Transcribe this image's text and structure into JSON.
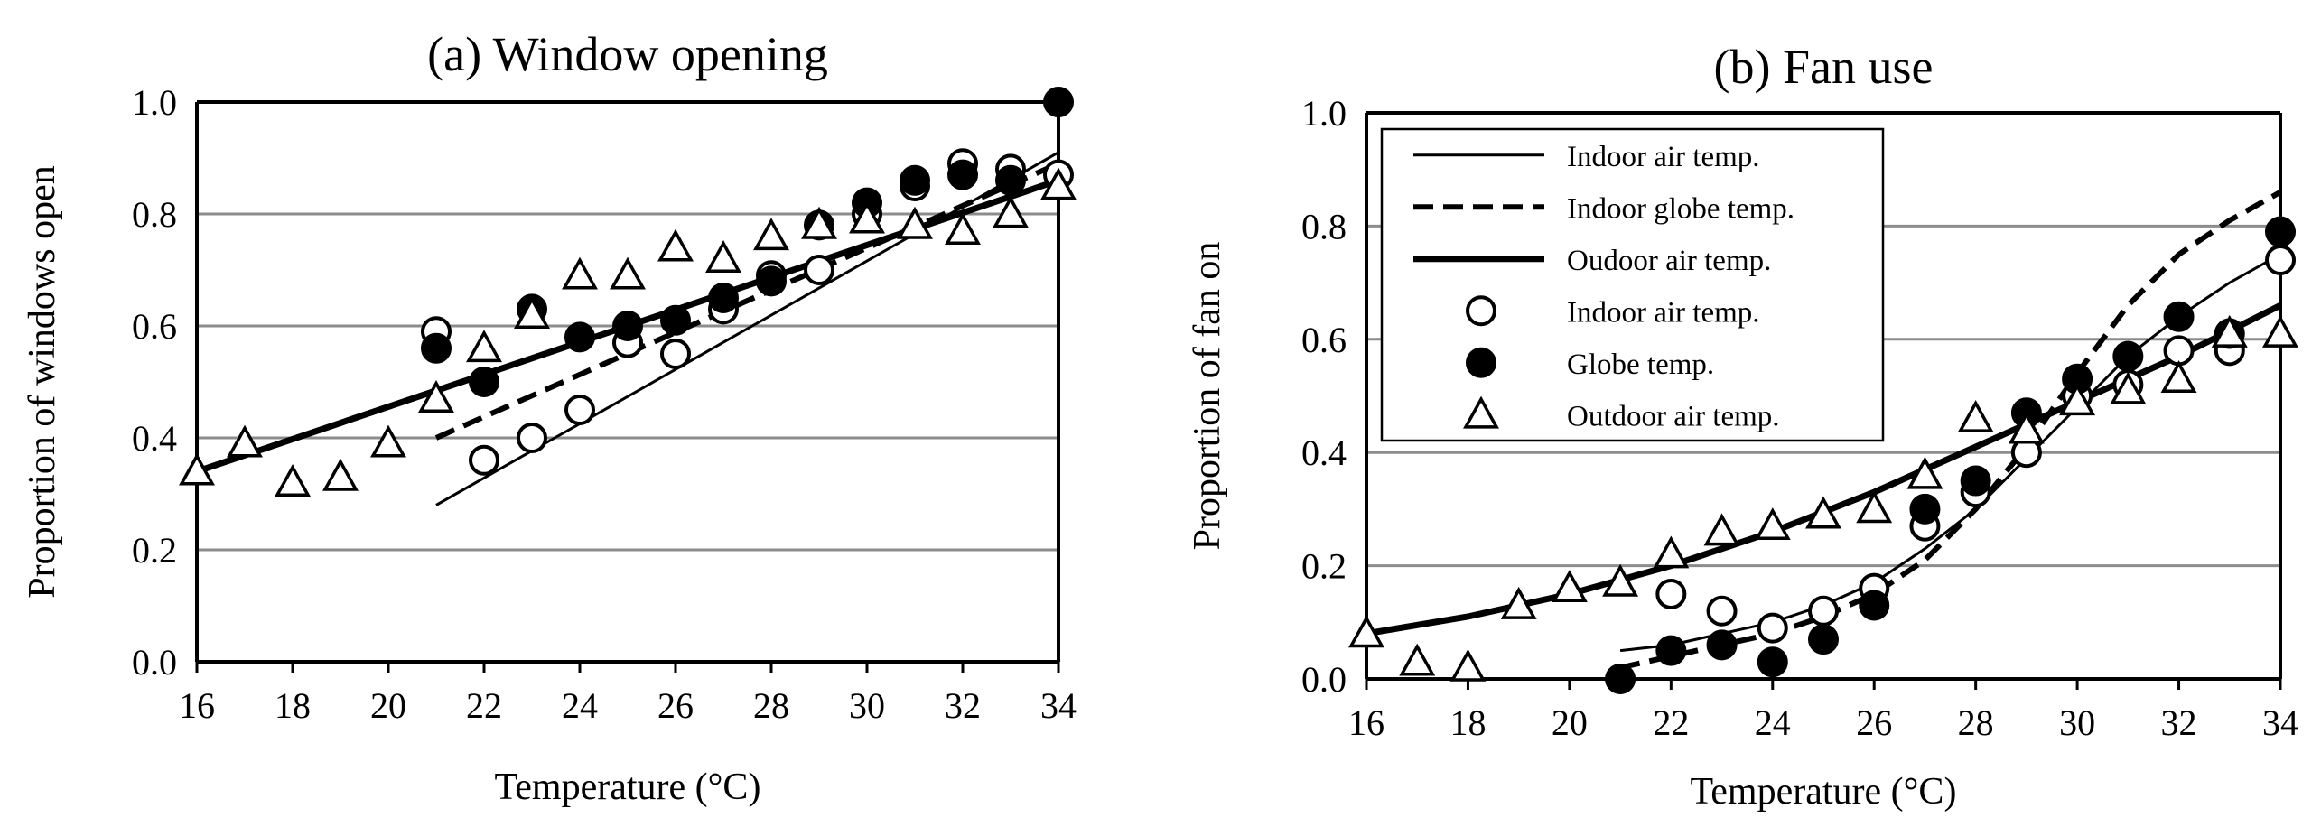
{
  "chart_data": [
    {
      "type": "scatter",
      "title": "(a) Window opening",
      "xlabel": "Temperature (°C)",
      "ylabel": "Proportion of windows open",
      "xlim": [
        16,
        34
      ],
      "ylim": [
        0,
        1
      ],
      "xticks": [
        "16",
        "18",
        "20",
        "22",
        "24",
        "26",
        "28",
        "30",
        "32",
        "34"
      ],
      "yticks": [
        "0.0",
        "0.2",
        "0.4",
        "0.6",
        "0.8",
        "1.0"
      ],
      "grid": "horizontal",
      "lines": [
        {
          "style": "thin",
          "x": [
            21,
            34
          ],
          "y": [
            0.28,
            0.91
          ]
        },
        {
          "style": "dashed",
          "x": [
            21,
            34
          ],
          "y": [
            0.4,
            0.89
          ]
        },
        {
          "style": "thick",
          "x": [
            16,
            34
          ],
          "y": [
            0.34,
            0.86
          ]
        }
      ],
      "series": [
        {
          "marker": "open-circle",
          "x": [
            21,
            22,
            23,
            24,
            25,
            26,
            27,
            28,
            29,
            30,
            31,
            32,
            33,
            34
          ],
          "y": [
            0.59,
            0.36,
            0.4,
            0.45,
            0.57,
            0.55,
            0.63,
            0.69,
            0.7,
            0.8,
            0.85,
            0.89,
            0.88,
            0.87
          ]
        },
        {
          "marker": "filled-circle",
          "x": [
            21,
            22,
            23,
            24,
            25,
            26,
            27,
            28,
            29,
            30,
            31,
            32,
            33,
            34
          ],
          "y": [
            0.56,
            0.5,
            0.63,
            0.58,
            0.6,
            0.61,
            0.65,
            0.68,
            0.78,
            0.82,
            0.86,
            0.87,
            0.86,
            1.0
          ]
        },
        {
          "marker": "open-triangle",
          "x": [
            16,
            17,
            18,
            19,
            20,
            21,
            22,
            23,
            24,
            25,
            26,
            27,
            28,
            29,
            30,
            31,
            32,
            33,
            34
          ],
          "y": [
            0.34,
            0.39,
            0.32,
            0.33,
            0.39,
            0.47,
            0.56,
            0.62,
            0.69,
            0.69,
            0.74,
            0.72,
            0.76,
            0.78,
            0.79,
            0.78,
            0.77,
            0.8,
            0.85
          ]
        }
      ]
    },
    {
      "type": "scatter",
      "title": "(b) Fan use",
      "xlabel": "Temperature (°C)",
      "ylabel": "Proportion of fan on",
      "xlim": [
        16,
        34
      ],
      "ylim": [
        0,
        1
      ],
      "xticks": [
        "16",
        "18",
        "20",
        "22",
        "24",
        "26",
        "28",
        "30",
        "32",
        "34"
      ],
      "yticks": [
        "0.0",
        "0.2",
        "0.4",
        "0.6",
        "0.8",
        "1.0"
      ],
      "grid": "horizontal",
      "legend_placement": "top-left",
      "legend": [
        {
          "label": "Indoor air temp.",
          "style": "thin"
        },
        {
          "label": "Indoor globe temp.",
          "style": "dashed"
        },
        {
          "label": "Oudoor air temp.",
          "style": "thick"
        },
        {
          "label": "Indoor air temp.",
          "style": "open-circle"
        },
        {
          "label": "Globe temp.",
          "style": "filled-circle"
        },
        {
          "label": "Outdoor air temp.",
          "style": "open-triangle"
        }
      ],
      "lines": [
        {
          "style": "thin",
          "x": [
            21,
            22,
            23,
            24,
            25,
            26,
            27,
            28,
            29,
            30,
            31,
            32,
            33,
            34
          ],
          "y": [
            0.05,
            0.06,
            0.08,
            0.1,
            0.13,
            0.17,
            0.23,
            0.3,
            0.39,
            0.48,
            0.57,
            0.64,
            0.7,
            0.75
          ]
        },
        {
          "style": "dashed",
          "x": [
            21,
            22,
            23,
            24,
            25,
            26,
            27,
            28,
            29,
            30,
            31,
            32,
            33,
            34
          ],
          "y": [
            0.02,
            0.04,
            0.06,
            0.08,
            0.11,
            0.15,
            0.21,
            0.3,
            0.41,
            0.54,
            0.66,
            0.75,
            0.81,
            0.86
          ]
        },
        {
          "style": "thick",
          "x": [
            16,
            18,
            20,
            22,
            24,
            26,
            28,
            30,
            32,
            34
          ],
          "y": [
            0.08,
            0.11,
            0.15,
            0.2,
            0.26,
            0.33,
            0.41,
            0.49,
            0.57,
            0.66
          ]
        }
      ],
      "series": [
        {
          "marker": "open-circle",
          "x": [
            22,
            23,
            24,
            25,
            26,
            27,
            28,
            29,
            30,
            31,
            32,
            33,
            34
          ],
          "y": [
            0.15,
            0.12,
            0.09,
            0.12,
            0.16,
            0.27,
            0.33,
            0.4,
            0.5,
            0.52,
            0.58,
            0.58,
            0.74
          ]
        },
        {
          "marker": "filled-circle",
          "x": [
            21,
            22,
            23,
            24,
            25,
            26,
            27,
            28,
            29,
            30,
            31,
            32,
            33,
            34
          ],
          "y": [
            0.0,
            0.05,
            0.06,
            0.03,
            0.07,
            0.13,
            0.3,
            0.35,
            0.47,
            0.53,
            0.57,
            0.64,
            0.61,
            0.79
          ]
        },
        {
          "marker": "open-triangle",
          "x": [
            16,
            17,
            18,
            19,
            20,
            21,
            22,
            23,
            24,
            25,
            26,
            27,
            28,
            29,
            30,
            31,
            32,
            33,
            34
          ],
          "y": [
            0.08,
            0.03,
            0.02,
            0.13,
            0.16,
            0.17,
            0.22,
            0.26,
            0.27,
            0.29,
            0.3,
            0.36,
            0.46,
            0.44,
            0.49,
            0.51,
            0.53,
            0.61,
            0.61
          ]
        }
      ]
    }
  ]
}
